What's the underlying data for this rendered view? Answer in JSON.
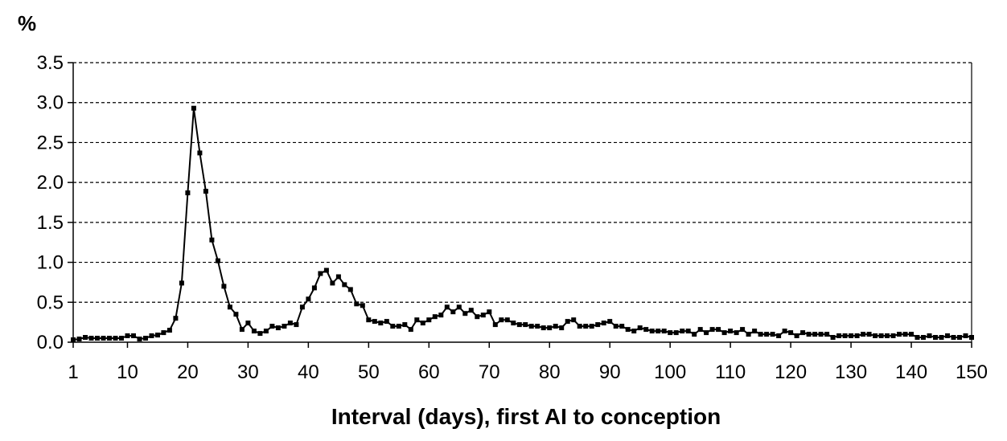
{
  "chart_data": {
    "type": "line",
    "title": "",
    "xlabel": "Interval (days), first AI to conception",
    "ylabel": "%",
    "xlim": [
      1,
      150
    ],
    "ylim": [
      0,
      3.5
    ],
    "x_ticks": [
      1,
      10,
      20,
      30,
      40,
      50,
      60,
      70,
      80,
      90,
      100,
      110,
      120,
      130,
      140,
      150
    ],
    "x_tick_labels": [
      "1",
      "10",
      "20",
      "30",
      "40",
      "50",
      "60",
      "70",
      "80",
      "90",
      "100",
      "110",
      "120",
      "130",
      "140",
      "150"
    ],
    "y_ticks": [
      0,
      0.5,
      1,
      1.5,
      2,
      2.5,
      3,
      3.5
    ],
    "y_tick_labels": [
      "0.0",
      "0.5",
      "1.0",
      "1.5",
      "2.0",
      "2.5",
      "3.0",
      "3.5"
    ],
    "grid": "horizontal dashed",
    "legend": "none",
    "colors": {
      "line": "#000000",
      "grid": "#000000",
      "axis": "#000000"
    },
    "series": [
      {
        "x": [
          1,
          2,
          3,
          4,
          5,
          6,
          7,
          8,
          9,
          10,
          11,
          12,
          13,
          14,
          15,
          16,
          17,
          18,
          19,
          20,
          21,
          22,
          23,
          24,
          25,
          26,
          27,
          28,
          29,
          30,
          31,
          32,
          33,
          34,
          35,
          36,
          37,
          38,
          39,
          40,
          41,
          42,
          43,
          44,
          45,
          46,
          47,
          48,
          49,
          50,
          51,
          52,
          53,
          54,
          55,
          56,
          57,
          58,
          59,
          60,
          61,
          62,
          63,
          64,
          65,
          66,
          67,
          68,
          69,
          70,
          71,
          72,
          73,
          74,
          75,
          76,
          77,
          78,
          79,
          80,
          81,
          82,
          83,
          84,
          85,
          86,
          87,
          88,
          89,
          90,
          91,
          92,
          93,
          94,
          95,
          96,
          97,
          98,
          99,
          100,
          101,
          102,
          103,
          104,
          105,
          106,
          107,
          108,
          109,
          110,
          111,
          112,
          113,
          114,
          115,
          116,
          117,
          118,
          119,
          120,
          121,
          122,
          123,
          124,
          125,
          126,
          127,
          128,
          129,
          130,
          131,
          132,
          133,
          134,
          135,
          136,
          137,
          138,
          139,
          140,
          141,
          142,
          143,
          144,
          145,
          146,
          147,
          148,
          149,
          150
        ],
        "values": [
          0.03,
          0.04,
          0.06,
          0.05,
          0.05,
          0.05,
          0.05,
          0.05,
          0.05,
          0.08,
          0.08,
          0.04,
          0.05,
          0.08,
          0.09,
          0.12,
          0.15,
          0.3,
          0.74,
          1.87,
          2.93,
          2.37,
          1.89,
          1.28,
          1.02,
          0.7,
          0.44,
          0.35,
          0.16,
          0.24,
          0.14,
          0.11,
          0.14,
          0.2,
          0.18,
          0.2,
          0.24,
          0.22,
          0.44,
          0.54,
          0.68,
          0.86,
          0.9,
          0.74,
          0.82,
          0.72,
          0.66,
          0.48,
          0.46,
          0.28,
          0.26,
          0.24,
          0.26,
          0.2,
          0.2,
          0.22,
          0.16,
          0.28,
          0.24,
          0.28,
          0.32,
          0.34,
          0.44,
          0.38,
          0.44,
          0.36,
          0.4,
          0.32,
          0.34,
          0.38,
          0.22,
          0.28,
          0.28,
          0.24,
          0.22,
          0.22,
          0.2,
          0.2,
          0.18,
          0.18,
          0.2,
          0.18,
          0.26,
          0.28,
          0.2,
          0.2,
          0.2,
          0.22,
          0.24,
          0.26,
          0.2,
          0.2,
          0.16,
          0.14,
          0.18,
          0.16,
          0.14,
          0.14,
          0.14,
          0.12,
          0.12,
          0.14,
          0.14,
          0.1,
          0.16,
          0.12,
          0.16,
          0.16,
          0.12,
          0.14,
          0.12,
          0.16,
          0.1,
          0.14,
          0.1,
          0.1,
          0.1,
          0.08,
          0.14,
          0.12,
          0.08,
          0.12,
          0.1,
          0.1,
          0.1,
          0.1,
          0.06,
          0.08,
          0.08,
          0.08,
          0.08,
          0.1,
          0.1,
          0.08,
          0.08,
          0.08,
          0.08,
          0.1,
          0.1,
          0.1,
          0.06,
          0.06,
          0.08,
          0.06,
          0.06,
          0.08,
          0.06,
          0.06,
          0.08,
          0.06
        ]
      }
    ]
  }
}
